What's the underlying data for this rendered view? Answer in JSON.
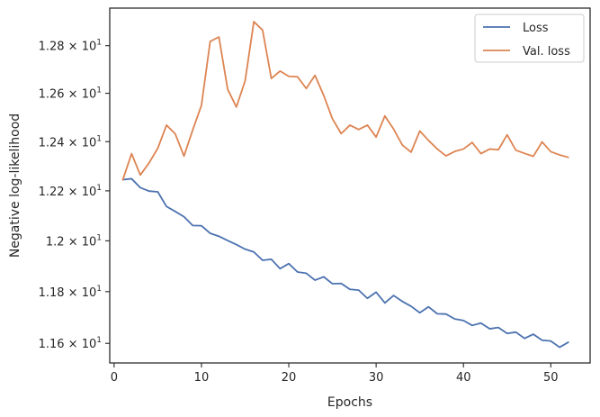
{
  "chart_data": {
    "type": "line",
    "title": "",
    "xlabel": "Epochs",
    "ylabel": "Negative log-likelihood",
    "xlim": [
      -0.5,
      54.5
    ],
    "ylim": [
      11.525,
      12.96
    ],
    "y_scale": "log",
    "grid": false,
    "legend_position": "top-right",
    "x_ticks": [
      {
        "value": 0,
        "label": "0"
      },
      {
        "value": 10,
        "label": "10"
      },
      {
        "value": 20,
        "label": "20"
      },
      {
        "value": 30,
        "label": "30"
      },
      {
        "value": 40,
        "label": "40"
      },
      {
        "value": 50,
        "label": "50"
      }
    ],
    "y_ticks": [
      {
        "value": 11.6,
        "mant": "1.16",
        "exp": "1"
      },
      {
        "value": 11.8,
        "mant": "1.18",
        "exp": "1"
      },
      {
        "value": 12.0,
        "mant": "1.2",
        "exp": "1"
      },
      {
        "value": 12.2,
        "mant": "1.22",
        "exp": "1"
      },
      {
        "value": 12.4,
        "mant": "1.24",
        "exp": "1"
      },
      {
        "value": 12.6,
        "mant": "1.26",
        "exp": "1"
      },
      {
        "value": 12.8,
        "mant": "1.28",
        "exp": "1"
      }
    ],
    "x": [
      1,
      2,
      3,
      4,
      5,
      6,
      7,
      8,
      9,
      10,
      11,
      12,
      13,
      14,
      15,
      16,
      17,
      18,
      19,
      20,
      21,
      22,
      23,
      24,
      25,
      26,
      27,
      28,
      29,
      30,
      31,
      32,
      33,
      34,
      35,
      36,
      37,
      38,
      39,
      40,
      41,
      42,
      43,
      44,
      45,
      46,
      47,
      48,
      49,
      50,
      51,
      52
    ],
    "series": [
      {
        "name": "Loss",
        "color": "#4c72b0",
        "values": [
          12.245,
          12.249,
          12.213,
          12.199,
          12.196,
          12.137,
          12.117,
          12.096,
          12.061,
          12.06,
          12.03,
          12.018,
          12.001,
          11.985,
          11.967,
          11.956,
          11.923,
          11.927,
          11.89,
          11.91,
          11.877,
          11.872,
          11.845,
          11.858,
          11.831,
          11.832,
          11.809,
          11.806,
          11.774,
          11.798,
          11.756,
          11.785,
          11.762,
          11.743,
          11.718,
          11.741,
          11.714,
          11.713,
          11.694,
          11.688,
          11.669,
          11.678,
          11.656,
          11.661,
          11.638,
          11.643,
          11.619,
          11.635,
          11.612,
          11.609,
          11.585,
          11.604
        ]
      },
      {
        "name": "Val. loss",
        "color": "#dd8452",
        "values": [
          12.245,
          12.351,
          12.264,
          12.313,
          12.373,
          12.468,
          12.432,
          12.341,
          12.448,
          12.55,
          12.818,
          12.837,
          12.617,
          12.543,
          12.652,
          12.902,
          12.866,
          12.662,
          12.693,
          12.671,
          12.669,
          12.62,
          12.675,
          12.591,
          12.494,
          12.433,
          12.468,
          12.45,
          12.468,
          12.419,
          12.506,
          12.452,
          12.386,
          12.357,
          12.444,
          12.405,
          12.37,
          12.342,
          12.36,
          12.37,
          12.397,
          12.351,
          12.37,
          12.367,
          12.428,
          12.365,
          12.352,
          12.34,
          12.399,
          12.359,
          12.346,
          12.336
        ]
      }
    ]
  }
}
